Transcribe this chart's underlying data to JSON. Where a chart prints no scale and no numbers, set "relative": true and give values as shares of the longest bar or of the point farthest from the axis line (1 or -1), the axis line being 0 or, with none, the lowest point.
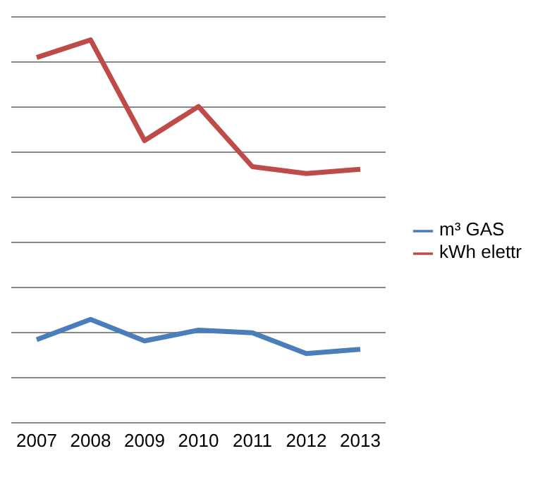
{
  "chart_data": {
    "type": "line",
    "relative": true,
    "categories": [
      "2007",
      "2008",
      "2009",
      "2010",
      "2011",
      "2012",
      "2013"
    ],
    "series": [
      {
        "name": "m³ GAS",
        "color": "#4a7ebb",
        "values": [
          0.217,
          0.27,
          0.214,
          0.242,
          0.235,
          0.181,
          0.192
        ]
      },
      {
        "name": "kWh elettr",
        "color": "#be4b48",
        "values": [
          0.954,
          1,
          0.737,
          0.826,
          0.669,
          0.651,
          0.662
        ]
      }
    ],
    "grid": "y",
    "legend": "right",
    "marker": "none"
  }
}
